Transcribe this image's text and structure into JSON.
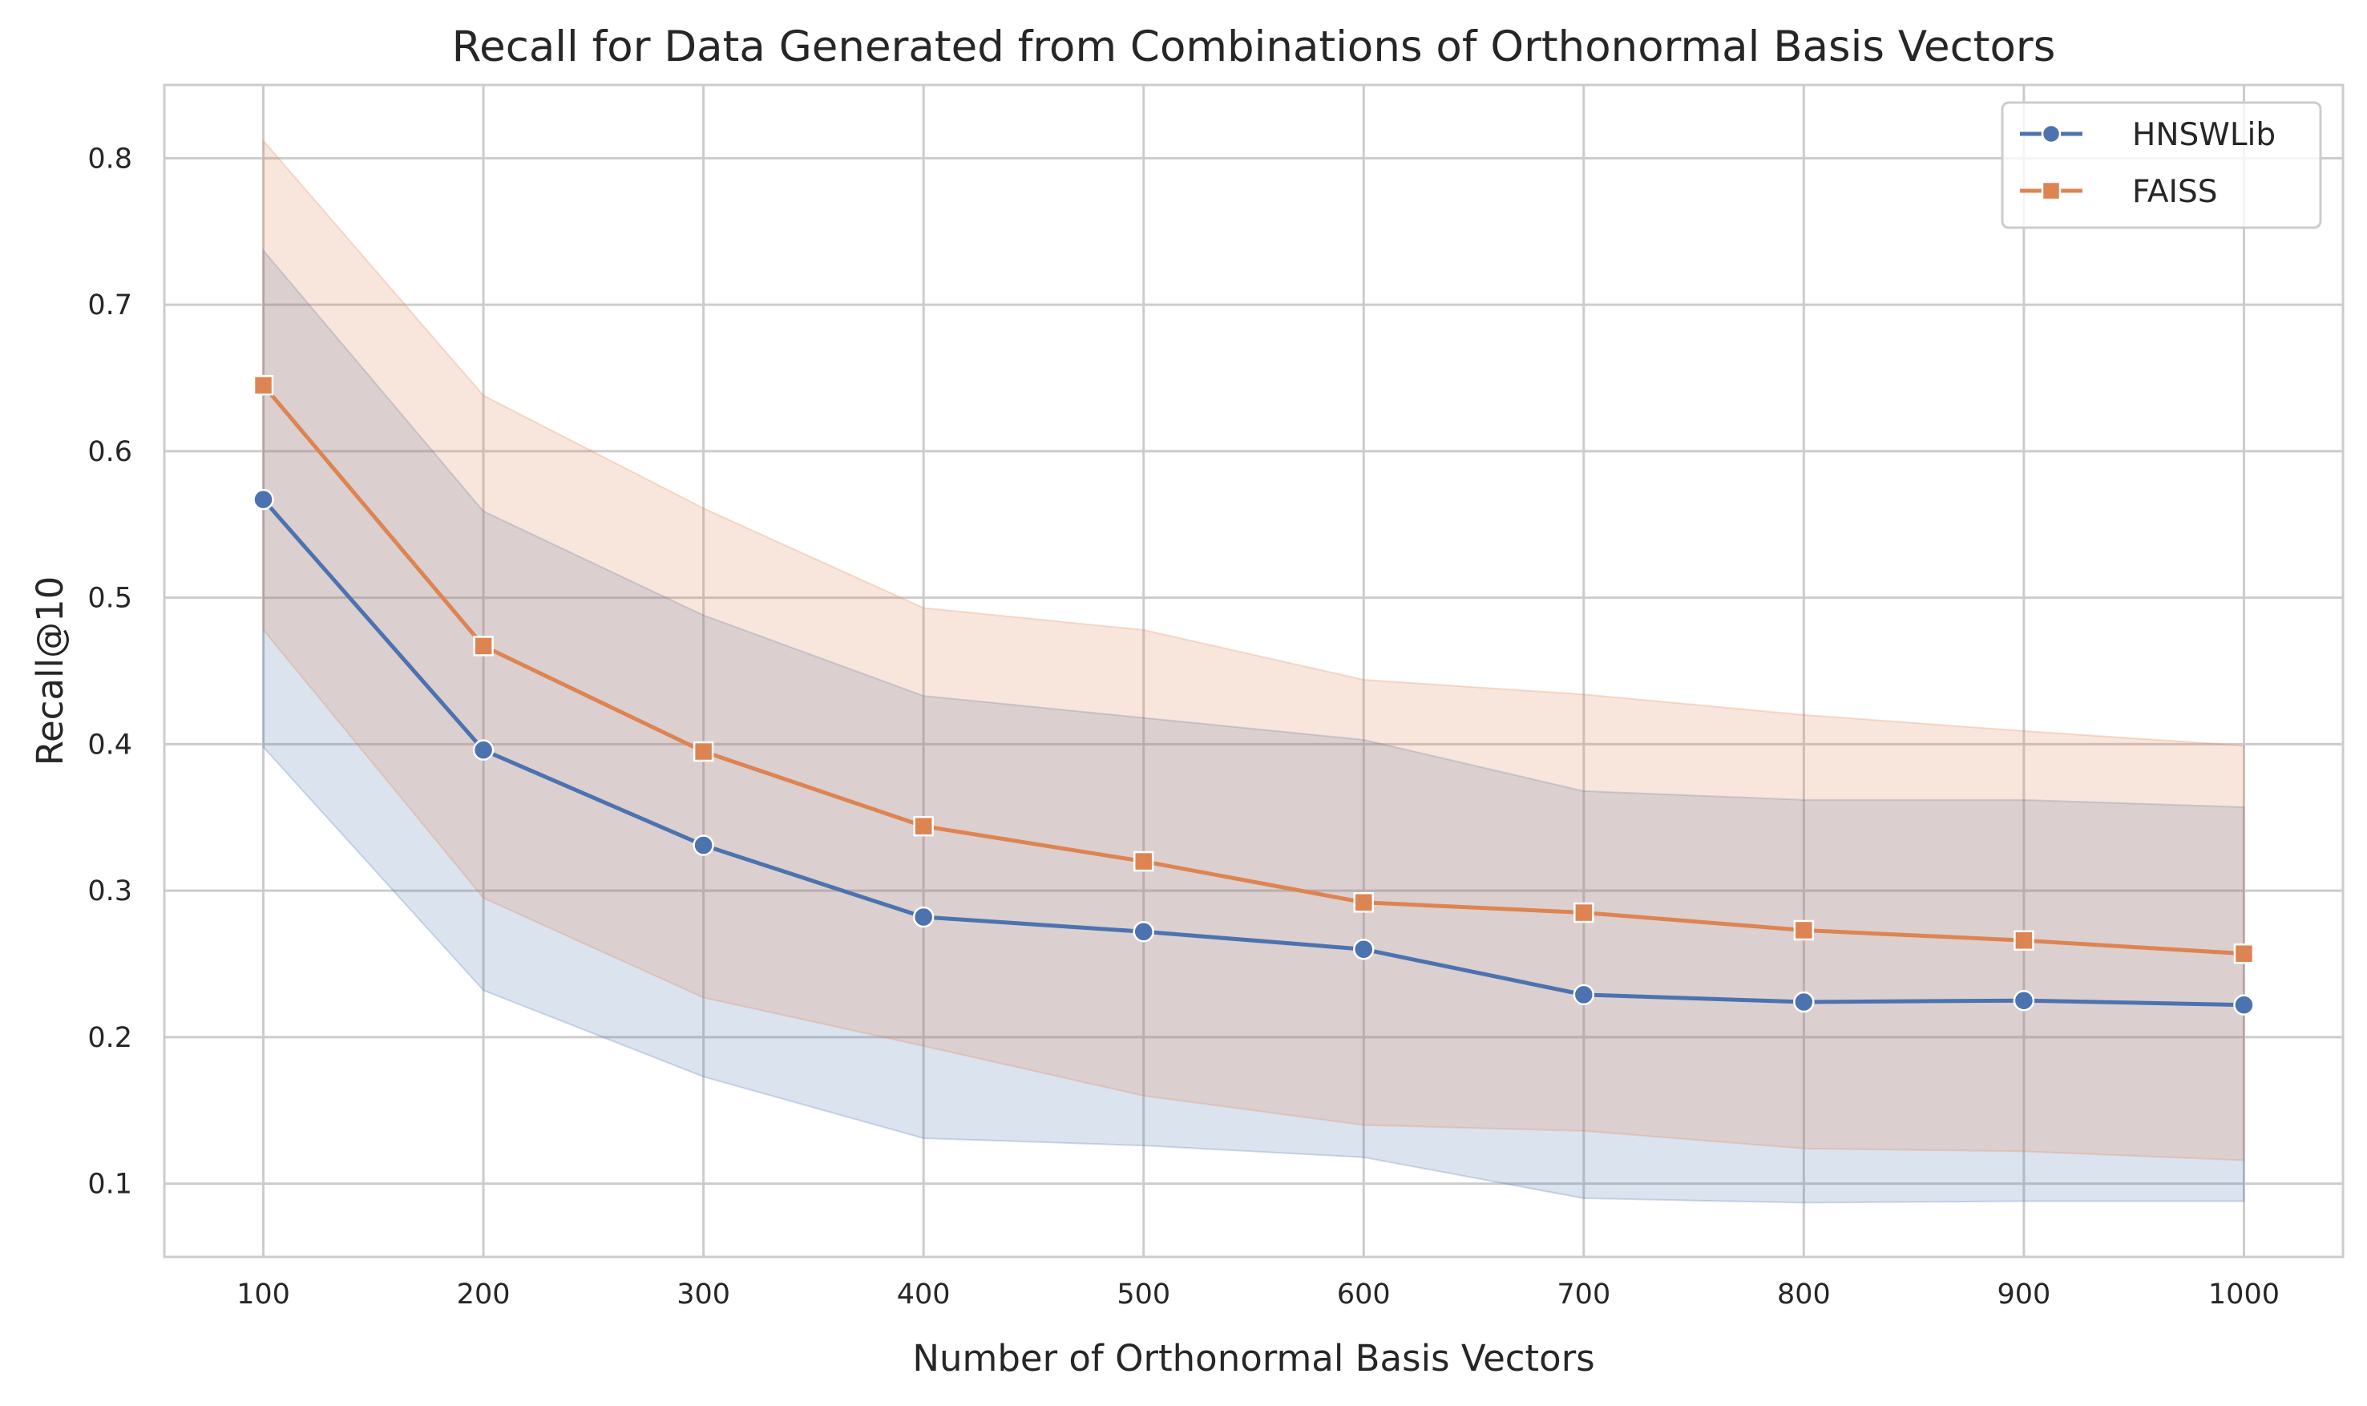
{
  "chart_data": {
    "type": "line",
    "title": "Recall for Data Generated from Combinations of Orthonormal Basis Vectors",
    "xlabel": "Number of Orthonormal Basis Vectors",
    "ylabel": "Recall@10",
    "x": [
      100,
      200,
      300,
      400,
      500,
      600,
      700,
      800,
      900,
      1000
    ],
    "xlim": [
      55,
      1045
    ],
    "ylim": [
      0.05,
      0.85
    ],
    "x_ticks": [
      100,
      200,
      300,
      400,
      500,
      600,
      700,
      800,
      900,
      1000
    ],
    "y_ticks": [
      0.1,
      0.2,
      0.3,
      0.4,
      0.5,
      0.6,
      0.7,
      0.8
    ],
    "grid": true,
    "legend_position": "top-right",
    "series": [
      {
        "name": "HNSWLib",
        "marker": "circle",
        "color": "#4c72b0",
        "band_color": "#4c72b0",
        "values": [
          0.567,
          0.396,
          0.331,
          0.282,
          0.272,
          0.26,
          0.229,
          0.224,
          0.225,
          0.222
        ],
        "upper": [
          0.737,
          0.559,
          0.488,
          0.433,
          0.418,
          0.403,
          0.368,
          0.362,
          0.362,
          0.357
        ],
        "lower": [
          0.398,
          0.232,
          0.173,
          0.131,
          0.126,
          0.118,
          0.09,
          0.087,
          0.088,
          0.088
        ]
      },
      {
        "name": "FAISS",
        "marker": "square",
        "color": "#dd8452",
        "band_color": "#dd8452",
        "values": [
          0.645,
          0.467,
          0.395,
          0.344,
          0.32,
          0.292,
          0.285,
          0.273,
          0.266,
          0.257
        ],
        "upper": [
          0.812,
          0.638,
          0.561,
          0.493,
          0.478,
          0.444,
          0.434,
          0.42,
          0.409,
          0.399
        ],
        "lower": [
          0.478,
          0.295,
          0.227,
          0.194,
          0.16,
          0.14,
          0.136,
          0.124,
          0.122,
          0.116
        ]
      }
    ]
  }
}
